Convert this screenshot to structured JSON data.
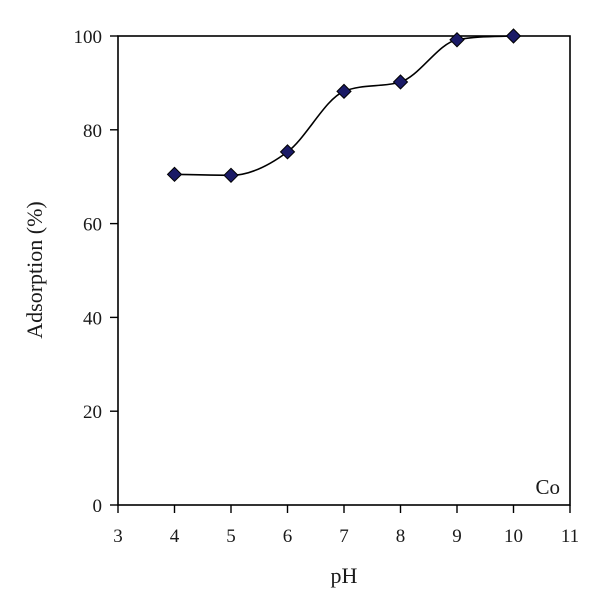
{
  "chart_data": {
    "type": "line",
    "title": "",
    "xlabel": "pH",
    "ylabel": "Adsorption (%)",
    "annotation": "Co",
    "xlim": [
      3,
      11
    ],
    "ylim": [
      0,
      100
    ],
    "xticks": [
      3,
      4,
      5,
      6,
      7,
      8,
      9,
      10,
      11
    ],
    "yticks": [
      0,
      20,
      40,
      60,
      80,
      100
    ],
    "grid": false,
    "smooth": true,
    "marker": "diamond",
    "colors": {
      "marker_fill": "#1a1a66",
      "line": "#000000",
      "axis": "#000000"
    },
    "series": [
      {
        "x": [
          4,
          5,
          6,
          7,
          8,
          9,
          10
        ],
        "y": [
          70.5,
          70.3,
          75.3,
          88.2,
          90.2,
          99.2,
          100
        ]
      }
    ]
  }
}
